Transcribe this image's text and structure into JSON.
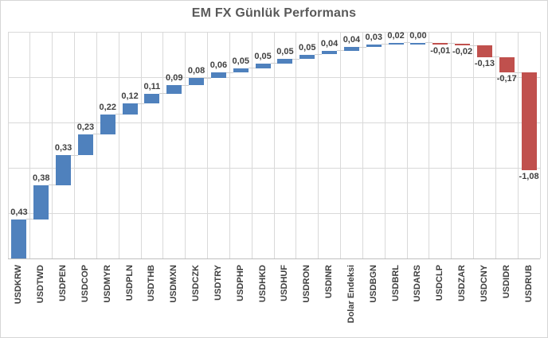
{
  "chart_data": {
    "type": "bar",
    "subtype": "waterfall",
    "title": "EM FX Günlük Performans",
    "xlabel": "",
    "ylabel": "",
    "ylim": [
      0,
      2.5
    ],
    "gridline_step": 0.5,
    "grid": "both",
    "legend": "none",
    "decimal_separator": ",",
    "categories": [
      "USDKRW",
      "USDTWD",
      "USDPEN",
      "USDCOP",
      "USDMYR",
      "USDPLN",
      "USDTHB",
      "USDMXN",
      "USDCZK",
      "USDTRY",
      "USDPHP",
      "USDHKD",
      "USDHUF",
      "USDRON",
      "USDINR",
      "Dolar Endeksi",
      "USDBGN",
      "USDBRL",
      "USDARS",
      "USDCLP",
      "USDZAR",
      "USDCNY",
      "USDIDR",
      "USDRUB"
    ],
    "values": [
      0.43,
      0.38,
      0.33,
      0.23,
      0.22,
      0.12,
      0.11,
      0.09,
      0.08,
      0.06,
      0.05,
      0.05,
      0.05,
      0.05,
      0.04,
      0.04,
      0.03,
      0.02,
      0.0,
      -0.01,
      -0.02,
      -0.13,
      -0.17,
      -1.08
    ],
    "value_labels": [
      "0,43",
      "0,38",
      "0,33",
      "0,23",
      "0,22",
      "0,12",
      "0,11",
      "0,09",
      "0,08",
      "0,06",
      "0,05",
      "0,05",
      "0,05",
      "0,05",
      "0,04",
      "0,04",
      "0,03",
      "0,02",
      "0,00",
      "-0,01",
      "-0,02",
      "-0,13",
      "-0,17",
      "-1,08"
    ],
    "colors": {
      "positive_bar": "#4F81BD",
      "negative_bar": "#C0504D",
      "gridline": "#D9D9D9",
      "axis_line": "#BFBFBF",
      "connector": "#CFCFCF",
      "data_label": "#404040",
      "category_label": "#404040",
      "title": "#595959",
      "border": "#D6D6D6",
      "background": "#FFFFFF"
    }
  }
}
